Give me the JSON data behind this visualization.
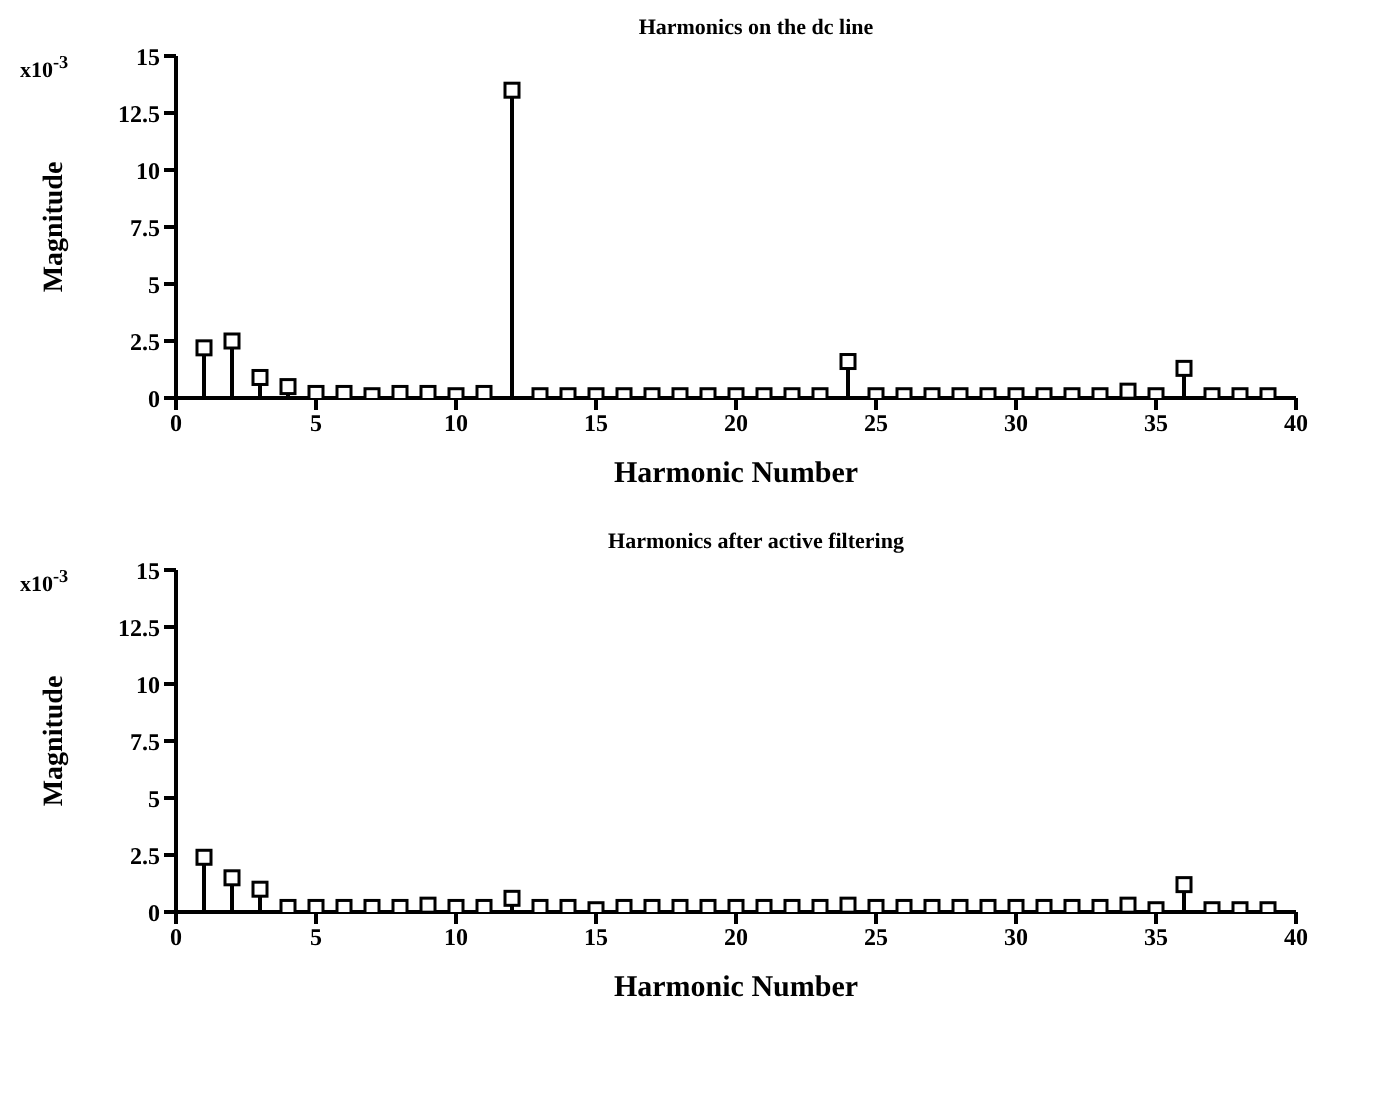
{
  "chart_data": [
    {
      "type": "lollipop",
      "title": "Harmonics on the dc line",
      "xlabel": "Harmonic Number",
      "ylabel": "Magnitude",
      "annotations": [
        "x10$^{-3}$"
      ],
      "marker": "square",
      "series": [
        {
          "color": "#000000",
          "x": [
            1,
            2,
            3,
            4,
            5,
            6,
            7,
            8,
            9,
            10,
            11,
            12,
            13,
            14,
            15,
            16,
            17,
            18,
            19,
            20,
            21,
            22,
            23,
            24,
            25,
            26,
            27,
            28,
            29,
            30,
            31,
            32,
            33,
            34,
            35,
            36,
            37,
            38,
            39
          ],
          "values": [
            2.2,
            2.5,
            0.9,
            0.5,
            0.2,
            0.2,
            0.1,
            0.2,
            0.2,
            0.1,
            0.2,
            13.5,
            0.1,
            0.1,
            0.1,
            0.1,
            0.1,
            0.1,
            0.1,
            0.1,
            0.1,
            0.1,
            0.1,
            1.6,
            0.1,
            0.1,
            0.1,
            0.1,
            0.1,
            0.1,
            0.1,
            0.1,
            0.1,
            0.3,
            0.1,
            1.3,
            0.1,
            0.1,
            0.1
          ]
        }
      ],
      "xlim": [
        0,
        40
      ],
      "xticks": [
        0,
        5,
        10,
        15,
        20,
        25,
        30,
        35,
        40
      ],
      "ylim": [
        0,
        15
      ],
      "yticks": [
        0,
        2.5,
        5,
        7.5,
        10,
        12.5,
        15
      ],
      "grid": false,
      "legend": false
    },
    {
      "type": "lollipop",
      "title": "Harmonics after active filtering",
      "xlabel": "Harmonic Number",
      "ylabel": "Magnitude",
      "annotations": [
        "x10$^{-3}$"
      ],
      "marker": "square",
      "series": [
        {
          "color": "#000000",
          "x": [
            1,
            2,
            3,
            4,
            5,
            6,
            7,
            8,
            9,
            10,
            11,
            12,
            13,
            14,
            15,
            16,
            17,
            18,
            19,
            20,
            21,
            22,
            23,
            24,
            25,
            26,
            27,
            28,
            29,
            30,
            31,
            32,
            33,
            34,
            35,
            36,
            37,
            38,
            39
          ],
          "values": [
            2.4,
            1.5,
            1.0,
            0.2,
            0.2,
            0.2,
            0.2,
            0.2,
            0.3,
            0.2,
            0.2,
            0.6,
            0.2,
            0.2,
            0.1,
            0.2,
            0.2,
            0.2,
            0.2,
            0.2,
            0.2,
            0.2,
            0.2,
            0.3,
            0.2,
            0.2,
            0.2,
            0.2,
            0.2,
            0.2,
            0.2,
            0.2,
            0.2,
            0.3,
            0.1,
            1.2,
            0.1,
            0.1,
            0.1
          ]
        }
      ],
      "xlim": [
        0,
        40
      ],
      "xticks": [
        0,
        5,
        10,
        15,
        20,
        25,
        30,
        35,
        40
      ],
      "ylim": [
        0,
        15
      ],
      "yticks": [
        0,
        2.5,
        5,
        7.5,
        10,
        12.5,
        15
      ],
      "grid": false,
      "legend": false
    }
  ]
}
